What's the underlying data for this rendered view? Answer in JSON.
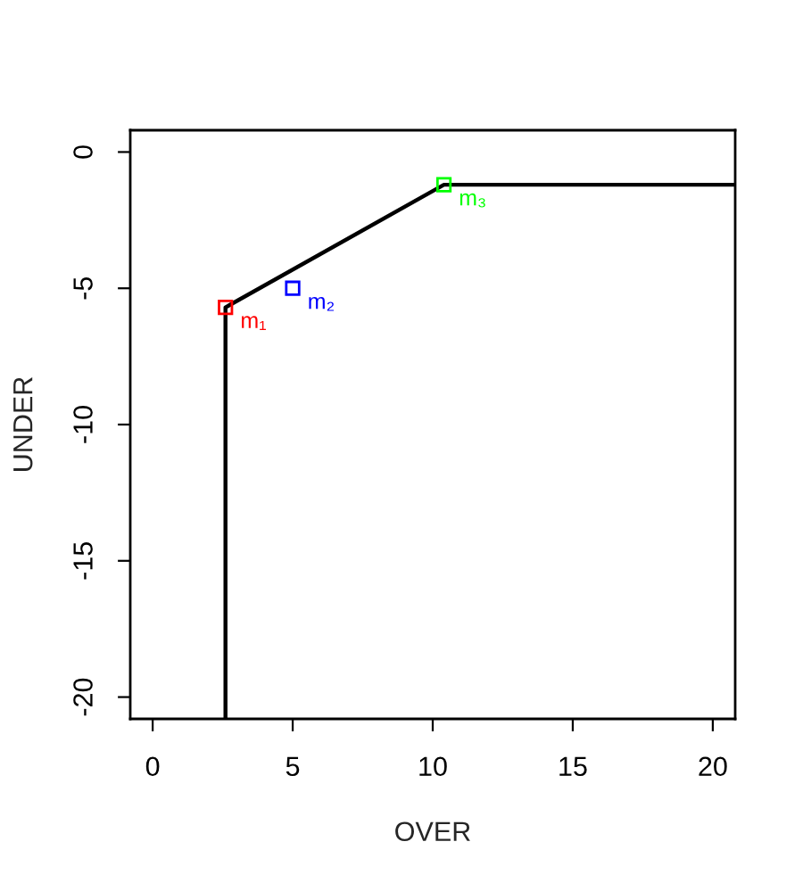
{
  "chart_data": {
    "type": "line",
    "xlabel": "OVER",
    "ylabel": "UNDER",
    "xlim": [
      -0.8,
      20.8
    ],
    "ylim": [
      -20.8,
      0.8
    ],
    "xticks": [
      0,
      5,
      10,
      15,
      20
    ],
    "yticks": [
      -20,
      -15,
      -10,
      -5,
      0
    ],
    "grid": false,
    "legend": false,
    "series": [
      {
        "color": "#000000",
        "line_style": "solid",
        "x": [
          2.6,
          2.6,
          10.4,
          20.8
        ],
        "values": [
          -20.8,
          -5.7,
          -1.2,
          -1.2
        ]
      },
      {
        "type": "scatter",
        "name": "m₁",
        "color": "#ff0000",
        "marker": "square",
        "x": [
          2.6
        ],
        "values": [
          -5.7
        ]
      },
      {
        "type": "scatter",
        "name": "m₂",
        "color": "#0000ff",
        "marker": "square",
        "x": [
          5.0
        ],
        "values": [
          -5.0
        ]
      },
      {
        "type": "scatter",
        "name": "m₃",
        "color": "#00ff00",
        "marker": "square",
        "x": [
          10.4
        ],
        "values": [
          -1.2
        ]
      }
    ]
  }
}
